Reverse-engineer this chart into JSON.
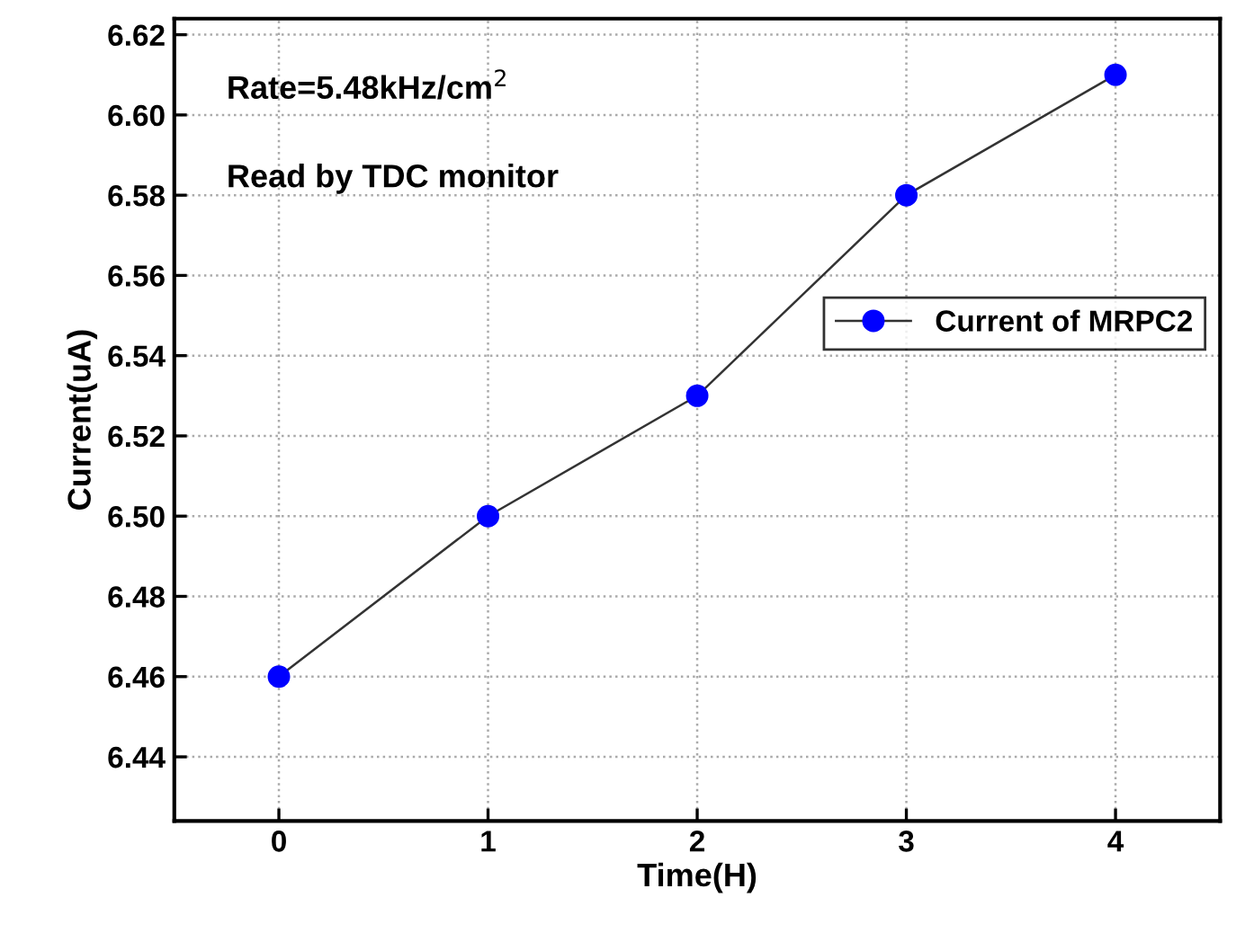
{
  "chart_data": {
    "type": "line",
    "xlabel": "Time(H)",
    "ylabel": "Current(uA)",
    "annotations": [
      "Rate=5.48kHz/cm$^{2}$",
      "Read by TDC monitor"
    ],
    "x": [
      0,
      1,
      2,
      3,
      4
    ],
    "series": [
      {
        "name": "Current of MRPC2",
        "color": "#0000ff",
        "values": [
          6.46,
          6.5,
          6.53,
          6.58,
          6.61
        ]
      }
    ],
    "xlim": [
      -0.5,
      4.5
    ],
    "ylim": [
      6.424,
      6.624
    ],
    "xticks": [
      0,
      1,
      2,
      3,
      4
    ],
    "yticks": [
      {
        "value": 6.44,
        "label": "6.44"
      },
      {
        "value": 6.46,
        "label": "6.46"
      },
      {
        "value": 6.48,
        "label": "6.48"
      },
      {
        "value": 6.5,
        "label": "6.50"
      },
      {
        "value": 6.52,
        "label": "6.52"
      },
      {
        "value": 6.54,
        "label": "6.54"
      },
      {
        "value": 6.56,
        "label": "6.56"
      },
      {
        "value": 6.58,
        "label": "6.58"
      },
      {
        "value": 6.6,
        "label": "6.60"
      },
      {
        "value": 6.62,
        "label": "6.62"
      }
    ],
    "grid": true,
    "legend": "right",
    "marker": "circle",
    "line_style": "solid"
  }
}
